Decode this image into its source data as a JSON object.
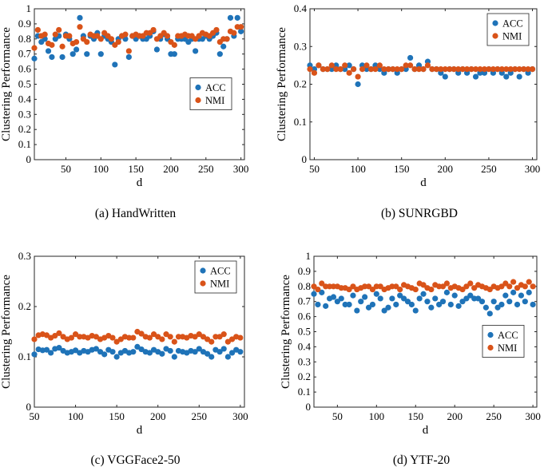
{
  "colors": {
    "acc": "#1f73b8",
    "nmi": "#d95319"
  },
  "icons": {
    "marker": "filled-circle"
  },
  "chart_data": [
    {
      "type": "scatter",
      "caption": "(a)  HandWritten",
      "xlabel": "d",
      "ylabel": "Clustering Performance",
      "xlim": [
        5,
        305
      ],
      "ylim": [
        0,
        1
      ],
      "xticks": [
        50,
        100,
        150,
        200,
        250,
        300
      ],
      "yticks": [
        0,
        0.1,
        0.2,
        0.3,
        0.4,
        0.5,
        0.6,
        0.7,
        0.8,
        0.9,
        1
      ],
      "ytick_labels": [
        "0",
        "0.1",
        "0.2",
        "0.3",
        "0.4",
        "0.5",
        "0.6",
        "0.7",
        "0.8",
        "0.9",
        "1"
      ],
      "legend": "center-right",
      "grid": false,
      "series": [
        {
          "name": "ACC",
          "x": [
            5,
            10,
            15,
            20,
            25,
            30,
            35,
            40,
            45,
            50,
            55,
            60,
            65,
            70,
            75,
            80,
            85,
            90,
            95,
            100,
            105,
            110,
            115,
            120,
            125,
            130,
            135,
            140,
            145,
            150,
            155,
            160,
            165,
            170,
            175,
            180,
            185,
            190,
            195,
            200,
            205,
            210,
            215,
            220,
            225,
            230,
            235,
            240,
            245,
            250,
            255,
            260,
            265,
            270,
            275,
            280,
            285,
            290,
            295,
            300
          ],
          "values": [
            0.67,
            0.82,
            0.78,
            0.8,
            0.72,
            0.68,
            0.8,
            0.82,
            0.68,
            0.83,
            0.8,
            0.7,
            0.73,
            0.94,
            0.82,
            0.7,
            0.82,
            0.8,
            0.84,
            0.7,
            0.82,
            0.8,
            0.78,
            0.63,
            0.8,
            0.82,
            0.8,
            0.68,
            0.82,
            0.8,
            0.82,
            0.8,
            0.8,
            0.82,
            0.85,
            0.73,
            0.8,
            0.83,
            0.8,
            0.7,
            0.7,
            0.8,
            0.8,
            0.8,
            0.78,
            0.8,
            0.72,
            0.8,
            0.8,
            0.82,
            0.8,
            0.82,
            0.84,
            0.7,
            0.75,
            0.8,
            0.94,
            0.82,
            0.94,
            0.85
          ]
        },
        {
          "name": "NMI",
          "x": [
            5,
            10,
            15,
            20,
            25,
            30,
            35,
            40,
            45,
            50,
            55,
            60,
            65,
            70,
            75,
            80,
            85,
            90,
            95,
            100,
            105,
            110,
            115,
            120,
            125,
            130,
            135,
            140,
            145,
            150,
            155,
            160,
            165,
            170,
            175,
            180,
            185,
            190,
            195,
            200,
            205,
            210,
            215,
            220,
            225,
            230,
            235,
            240,
            245,
            250,
            255,
            260,
            265,
            270,
            275,
            280,
            285,
            290,
            295,
            300
          ],
          "values": [
            0.74,
            0.86,
            0.82,
            0.83,
            0.77,
            0.76,
            0.83,
            0.86,
            0.75,
            0.82,
            0.82,
            0.77,
            0.78,
            0.88,
            0.8,
            0.78,
            0.83,
            0.82,
            0.82,
            0.8,
            0.84,
            0.82,
            0.8,
            0.76,
            0.78,
            0.82,
            0.83,
            0.72,
            0.82,
            0.83,
            0.82,
            0.82,
            0.84,
            0.84,
            0.86,
            0.8,
            0.82,
            0.84,
            0.82,
            0.78,
            0.76,
            0.82,
            0.82,
            0.83,
            0.82,
            0.82,
            0.8,
            0.82,
            0.84,
            0.83,
            0.82,
            0.84,
            0.86,
            0.78,
            0.8,
            0.8,
            0.85,
            0.84,
            0.88,
            0.88
          ]
        }
      ]
    },
    {
      "type": "scatter",
      "caption": "(b)  SUNRGBD",
      "xlabel": "d",
      "ylabel": "Clustering Performance",
      "xlim": [
        45,
        305
      ],
      "ylim": [
        0,
        0.4
      ],
      "xticks": [
        50,
        100,
        150,
        200,
        250,
        300
      ],
      "yticks": [
        0,
        0.1,
        0.2,
        0.3,
        0.4
      ],
      "ytick_labels": [
        "0",
        "0.1",
        "0.2",
        "0.3",
        "0.4"
      ],
      "legend": "top-right",
      "grid": false,
      "series": [
        {
          "name": "ACC",
          "x": [
            45,
            50,
            55,
            60,
            65,
            70,
            75,
            80,
            85,
            90,
            95,
            100,
            105,
            110,
            115,
            120,
            125,
            130,
            135,
            140,
            145,
            150,
            155,
            160,
            165,
            170,
            175,
            180,
            185,
            190,
            195,
            200,
            205,
            210,
            215,
            220,
            225,
            230,
            235,
            240,
            245,
            250,
            255,
            260,
            265,
            270,
            275,
            280,
            285,
            290,
            295,
            300
          ],
          "values": [
            0.25,
            0.24,
            0.25,
            0.24,
            0.24,
            0.24,
            0.25,
            0.24,
            0.24,
            0.25,
            0.24,
            0.2,
            0.25,
            0.24,
            0.24,
            0.25,
            0.24,
            0.23,
            0.24,
            0.24,
            0.23,
            0.24,
            0.24,
            0.27,
            0.24,
            0.25,
            0.24,
            0.26,
            0.24,
            0.24,
            0.23,
            0.22,
            0.24,
            0.24,
            0.23,
            0.24,
            0.23,
            0.24,
            0.22,
            0.23,
            0.23,
            0.24,
            0.23,
            0.24,
            0.23,
            0.22,
            0.23,
            0.24,
            0.22,
            0.24,
            0.23,
            0.24
          ]
        },
        {
          "name": "NMI",
          "x": [
            45,
            50,
            55,
            60,
            65,
            70,
            75,
            80,
            85,
            90,
            95,
            100,
            105,
            110,
            115,
            120,
            125,
            130,
            135,
            140,
            145,
            150,
            155,
            160,
            165,
            170,
            175,
            180,
            185,
            190,
            195,
            200,
            205,
            210,
            215,
            220,
            225,
            230,
            235,
            240,
            245,
            250,
            255,
            260,
            265,
            270,
            275,
            280,
            285,
            290,
            295,
            300
          ],
          "values": [
            0.24,
            0.23,
            0.25,
            0.24,
            0.24,
            0.25,
            0.24,
            0.24,
            0.25,
            0.23,
            0.24,
            0.22,
            0.24,
            0.25,
            0.24,
            0.24,
            0.25,
            0.24,
            0.24,
            0.24,
            0.24,
            0.24,
            0.25,
            0.25,
            0.24,
            0.24,
            0.24,
            0.25,
            0.24,
            0.24,
            0.24,
            0.24,
            0.24,
            0.24,
            0.24,
            0.24,
            0.24,
            0.24,
            0.24,
            0.24,
            0.24,
            0.24,
            0.24,
            0.24,
            0.24,
            0.24,
            0.24,
            0.24,
            0.24,
            0.24,
            0.24,
            0.24
          ]
        }
      ]
    },
    {
      "type": "scatter",
      "caption": "(c)  VGGFace2-50",
      "xlabel": "d",
      "ylabel": "Clustering Performance",
      "xlim": [
        50,
        305
      ],
      "ylim": [
        0,
        0.3
      ],
      "xticks": [
        50,
        100,
        150,
        200,
        250,
        300
      ],
      "yticks": [
        0,
        0.1,
        0.2,
        0.3
      ],
      "ytick_labels": [
        "0",
        "0.1",
        "0.2",
        "0.3"
      ],
      "legend": "top-right",
      "grid": false,
      "series": [
        {
          "name": "ACC",
          "x": [
            50,
            55,
            60,
            65,
            70,
            75,
            80,
            85,
            90,
            95,
            100,
            105,
            110,
            115,
            120,
            125,
            130,
            135,
            140,
            145,
            150,
            155,
            160,
            165,
            170,
            175,
            180,
            185,
            190,
            195,
            200,
            205,
            210,
            215,
            220,
            225,
            230,
            235,
            240,
            245,
            250,
            255,
            260,
            265,
            270,
            275,
            280,
            285,
            290,
            295,
            300
          ],
          "values": [
            0.105,
            0.115,
            0.113,
            0.114,
            0.108,
            0.116,
            0.118,
            0.112,
            0.108,
            0.11,
            0.113,
            0.108,
            0.112,
            0.11,
            0.114,
            0.116,
            0.11,
            0.105,
            0.114,
            0.11,
            0.1,
            0.108,
            0.112,
            0.108,
            0.11,
            0.12,
            0.115,
            0.11,
            0.108,
            0.114,
            0.11,
            0.106,
            0.116,
            0.112,
            0.1,
            0.112,
            0.11,
            0.108,
            0.112,
            0.11,
            0.116,
            0.11,
            0.106,
            0.1,
            0.114,
            0.11,
            0.116,
            0.1,
            0.108,
            0.114,
            0.11
          ]
        },
        {
          "name": "NMI",
          "x": [
            50,
            55,
            60,
            65,
            70,
            75,
            80,
            85,
            90,
            95,
            100,
            105,
            110,
            115,
            120,
            125,
            130,
            135,
            140,
            145,
            150,
            155,
            160,
            165,
            170,
            175,
            180,
            185,
            190,
            195,
            200,
            205,
            210,
            215,
            220,
            225,
            230,
            235,
            240,
            245,
            250,
            255,
            260,
            265,
            270,
            275,
            280,
            285,
            290,
            295,
            300
          ],
          "values": [
            0.135,
            0.143,
            0.145,
            0.143,
            0.138,
            0.142,
            0.147,
            0.14,
            0.135,
            0.138,
            0.145,
            0.14,
            0.14,
            0.138,
            0.142,
            0.14,
            0.135,
            0.138,
            0.142,
            0.138,
            0.13,
            0.135,
            0.14,
            0.138,
            0.138,
            0.15,
            0.146,
            0.14,
            0.138,
            0.145,
            0.14,
            0.135,
            0.145,
            0.14,
            0.13,
            0.14,
            0.14,
            0.138,
            0.142,
            0.14,
            0.145,
            0.14,
            0.135,
            0.13,
            0.14,
            0.14,
            0.145,
            0.13,
            0.135,
            0.14,
            0.138
          ]
        }
      ]
    },
    {
      "type": "scatter",
      "caption": "(d)  YTF-20",
      "xlabel": "d",
      "ylabel": "Clustering Performance",
      "xlim": [
        20,
        305
      ],
      "ylim": [
        0,
        1
      ],
      "xticks": [
        50,
        100,
        150,
        200,
        250,
        300
      ],
      "yticks": [
        0,
        0.1,
        0.2,
        0.3,
        0.4,
        0.5,
        0.6,
        0.7,
        0.8,
        0.9,
        1
      ],
      "ytick_labels": [
        "0",
        "0.1",
        "0.2",
        "0.3",
        "0.4",
        "0.5",
        "0.6",
        "0.7",
        "0.8",
        "0.9",
        "1"
      ],
      "legend": "center-right",
      "grid": false,
      "series": [
        {
          "name": "ACC",
          "x": [
            20,
            25,
            30,
            35,
            40,
            45,
            50,
            55,
            60,
            65,
            70,
            75,
            80,
            85,
            90,
            95,
            100,
            105,
            110,
            115,
            120,
            125,
            130,
            135,
            140,
            145,
            150,
            155,
            160,
            165,
            170,
            175,
            180,
            185,
            190,
            195,
            200,
            205,
            210,
            215,
            220,
            225,
            230,
            235,
            240,
            245,
            250,
            255,
            260,
            265,
            270,
            275,
            280,
            285,
            290,
            295,
            300
          ],
          "values": [
            0.75,
            0.68,
            0.76,
            0.67,
            0.72,
            0.73,
            0.7,
            0.72,
            0.68,
            0.68,
            0.74,
            0.64,
            0.7,
            0.73,
            0.66,
            0.68,
            0.75,
            0.72,
            0.64,
            0.66,
            0.72,
            0.68,
            0.74,
            0.72,
            0.7,
            0.68,
            0.64,
            0.72,
            0.75,
            0.7,
            0.66,
            0.72,
            0.68,
            0.7,
            0.76,
            0.68,
            0.74,
            0.67,
            0.7,
            0.72,
            0.74,
            0.72,
            0.72,
            0.7,
            0.66,
            0.62,
            0.7,
            0.66,
            0.68,
            0.74,
            0.7,
            0.76,
            0.68,
            0.74,
            0.7,
            0.76,
            0.68
          ]
        },
        {
          "name": "NMI",
          "x": [
            20,
            25,
            30,
            35,
            40,
            45,
            50,
            55,
            60,
            65,
            70,
            75,
            80,
            85,
            90,
            95,
            100,
            105,
            110,
            115,
            120,
            125,
            130,
            135,
            140,
            145,
            150,
            155,
            160,
            165,
            170,
            175,
            180,
            185,
            190,
            195,
            200,
            205,
            210,
            215,
            220,
            225,
            230,
            235,
            240,
            245,
            250,
            255,
            260,
            265,
            270,
            275,
            280,
            285,
            290,
            295,
            300
          ],
          "values": [
            0.8,
            0.78,
            0.82,
            0.8,
            0.8,
            0.8,
            0.8,
            0.79,
            0.79,
            0.78,
            0.8,
            0.78,
            0.79,
            0.8,
            0.8,
            0.78,
            0.8,
            0.8,
            0.78,
            0.79,
            0.8,
            0.8,
            0.78,
            0.81,
            0.8,
            0.79,
            0.78,
            0.82,
            0.81,
            0.79,
            0.78,
            0.81,
            0.8,
            0.8,
            0.82,
            0.79,
            0.8,
            0.79,
            0.78,
            0.8,
            0.82,
            0.79,
            0.81,
            0.8,
            0.79,
            0.78,
            0.8,
            0.79,
            0.8,
            0.82,
            0.8,
            0.83,
            0.79,
            0.81,
            0.8,
            0.83,
            0.8
          ]
        }
      ]
    }
  ]
}
